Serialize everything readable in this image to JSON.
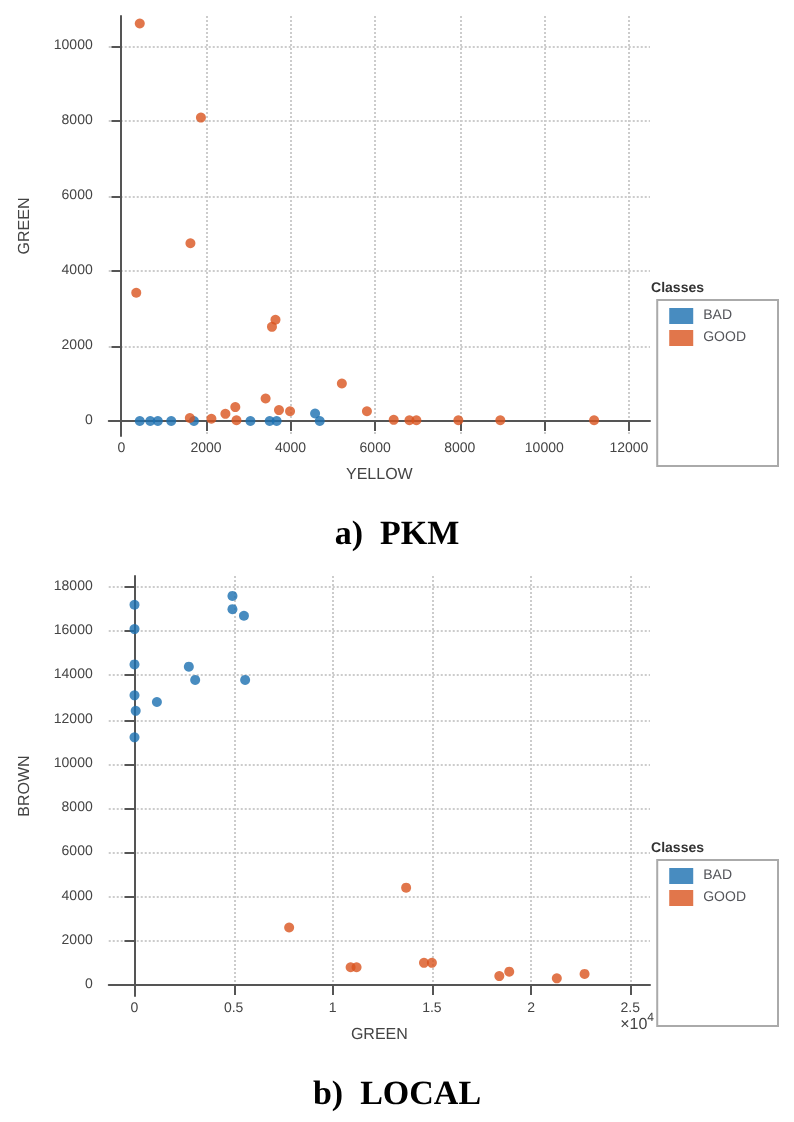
{
  "chart_data": [
    {
      "type": "scatter",
      "title": "a)  PKM",
      "xlabel": "YELLOW",
      "ylabel": "GREEN",
      "legend_title": "Classes",
      "legend": "right",
      "grid": true,
      "marker": "circle",
      "xlim": [
        -300,
        12500
      ],
      "ylim": [
        -400,
        10800
      ],
      "xticks": [
        0,
        2000,
        4000,
        6000,
        8000,
        10000,
        12000
      ],
      "yticks": [
        0,
        2000,
        4000,
        6000,
        8000,
        10000
      ],
      "series": [
        {
          "name": "BAD",
          "color": "#1a6fb0",
          "x": [
            434,
            682,
            861,
            1178,
            1715,
            3051,
            3506,
            3671,
            4580,
            4690
          ],
          "values": [
            0,
            0,
            0,
            0,
            0,
            0,
            0,
            0,
            200,
            0
          ]
        },
        {
          "name": "GOOD",
          "color": "#d9541e",
          "x": [
            434,
            1880,
            1632,
            351,
            3560,
            3643,
            5213,
            3410,
            1618,
            2128,
            2459,
            2693,
            2721,
            3726,
            3988,
            5806,
            6439,
            6811,
            6976,
            7968,
            8960,
            11178
          ],
          "values": [
            10600,
            8090,
            4740,
            3420,
            2510,
            2700,
            1000,
            600,
            80,
            60,
            190,
            370,
            20,
            290,
            260,
            260,
            30,
            20,
            20,
            20,
            20,
            20
          ]
        }
      ]
    },
    {
      "type": "scatter",
      "title": "b)  LOCAL",
      "xlabel": "GREEN",
      "ylabel": "BROWN",
      "legend_title": "Classes",
      "legend": "right",
      "grid": true,
      "marker": "circle",
      "annotations": [
        "×10$^{4}$"
      ],
      "xlim": [
        -0.13,
        2.6
      ],
      "ylim": [
        -500,
        18500
      ],
      "xticks": [
        0,
        0.5,
        1,
        1.5,
        2,
        2.5
      ],
      "yticks": [
        0,
        2000,
        4000,
        6000,
        8000,
        10000,
        12000,
        14000,
        16000,
        18000
      ],
      "series": [
        {
          "name": "BAD",
          "color": "#1a6fb0",
          "x": [
            0,
            0,
            0,
            0,
            0.006,
            0,
            0.113,
            0.274,
            0.306,
            0.494,
            0.494,
            0.552,
            0.558
          ],
          "values": [
            17200,
            16100,
            14500,
            13100,
            12400,
            11200,
            12800,
            14400,
            13800,
            17600,
            17000,
            16700,
            13800
          ]
        },
        {
          "name": "GOOD",
          "color": "#d9541e",
          "x": [
            0.78,
            1.09,
            1.12,
            1.37,
            1.46,
            1.5,
            1.84,
            1.89,
            2.13,
            2.27
          ],
          "values": [
            2600,
            800,
            800,
            4400,
            1000,
            1000,
            400,
            600,
            300,
            500
          ]
        }
      ]
    }
  ]
}
